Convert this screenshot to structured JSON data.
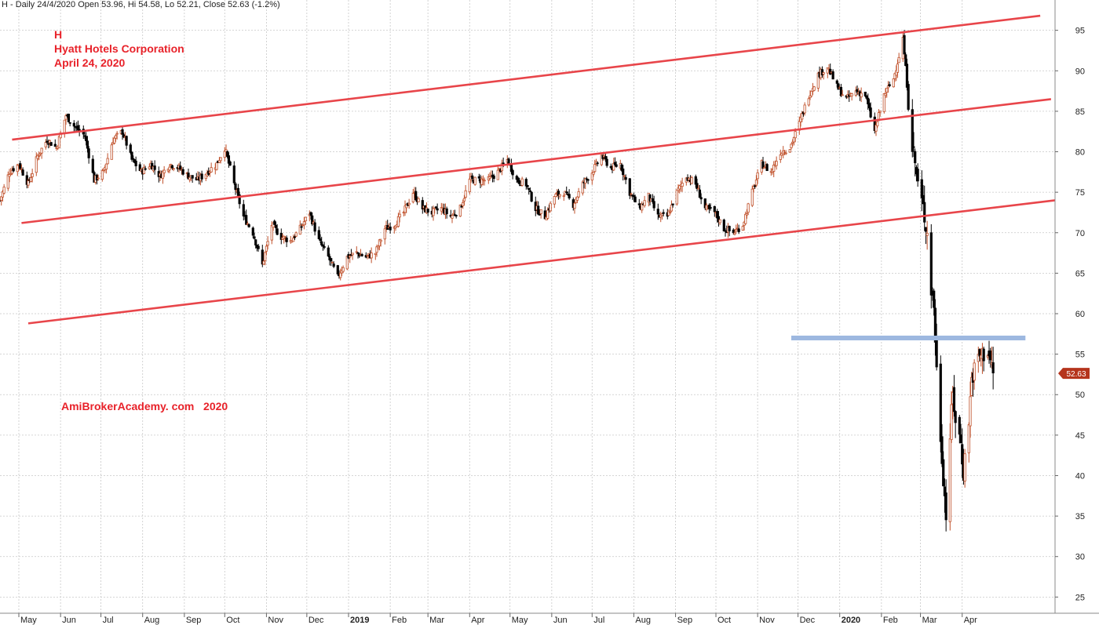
{
  "header": {
    "info": "H - Daily 24/4/2020 Open 53.96, Hi 54.58, Lo 52.21, Close 52.63 (-1.2%)"
  },
  "annotations": {
    "ticker": "H",
    "company": "Hyatt Hotels Corporation",
    "date": "April 24, 2020",
    "watermark": "AmiBrokerAcademy. com   2020"
  },
  "chart_data": {
    "type": "candlestick",
    "title": "H - Daily 24/4/2020 Open 53.96, Hi 54.58, Lo 52.21, Close 52.63 (-1.2%)",
    "ylim": [
      23,
      97
    ],
    "y_ticks": [
      25,
      30,
      35,
      40,
      45,
      50,
      55,
      60,
      65,
      70,
      75,
      80,
      85,
      90,
      95
    ],
    "x_ticks": [
      "May",
      "Jun",
      "Jul",
      "Aug",
      "Sep",
      "Oct",
      "Nov",
      "Dec",
      "2019",
      "Feb",
      "Mar",
      "Apr",
      "May",
      "Jun",
      "Jul",
      "Aug",
      "Sep",
      "Oct",
      "Nov",
      "Dec",
      "2020",
      "Feb",
      "Mar",
      "Apr"
    ],
    "x_range": [
      "2018-04-17",
      "2020-06-09"
    ],
    "last_close": 52.63,
    "last_close_label": "52.63",
    "grid": true,
    "colors": {
      "up": "#c0502a",
      "down": "#000000",
      "trendline": "#e8454a",
      "resistance": "#9db8e0",
      "price_tag": "#b5341c"
    },
    "price_path": [
      [
        "2018-04-17",
        74.0
      ],
      [
        "2018-04-24",
        77.5
      ],
      [
        "2018-05-01",
        78.5
      ],
      [
        "2018-05-08",
        76.0
      ],
      [
        "2018-05-15",
        79.5
      ],
      [
        "2018-05-22",
        81.5
      ],
      [
        "2018-05-29",
        80.5
      ],
      [
        "2018-06-05",
        84.5
      ],
      [
        "2018-06-12",
        83.0
      ],
      [
        "2018-06-19",
        82.0
      ],
      [
        "2018-06-26",
        76.5
      ],
      [
        "2018-07-03",
        77.5
      ],
      [
        "2018-07-10",
        81.5
      ],
      [
        "2018-07-17",
        82.5
      ],
      [
        "2018-07-24",
        79.0
      ],
      [
        "2018-07-31",
        77.5
      ],
      [
        "2018-08-07",
        78.5
      ],
      [
        "2018-08-14",
        77.0
      ],
      [
        "2018-08-21",
        78.5
      ],
      [
        "2018-08-28",
        78.0
      ],
      [
        "2018-09-04",
        77.0
      ],
      [
        "2018-09-11",
        76.5
      ],
      [
        "2018-09-18",
        77.5
      ],
      [
        "2018-09-25",
        78.5
      ],
      [
        "2018-10-01",
        80.5
      ],
      [
        "2018-10-08",
        76.0
      ],
      [
        "2018-10-15",
        72.0
      ],
      [
        "2018-10-22",
        70.0
      ],
      [
        "2018-10-29",
        66.0
      ],
      [
        "2018-11-05",
        71.0
      ],
      [
        "2018-11-12",
        69.5
      ],
      [
        "2018-11-19",
        69.0
      ],
      [
        "2018-11-26",
        70.5
      ],
      [
        "2018-12-03",
        72.5
      ],
      [
        "2018-12-10",
        69.0
      ],
      [
        "2018-12-17",
        67.0
      ],
      [
        "2018-12-24",
        64.5
      ],
      [
        "2018-12-31",
        67.0
      ],
      [
        "2019-01-07",
        67.5
      ],
      [
        "2019-01-14",
        67.0
      ],
      [
        "2019-01-21",
        67.5
      ],
      [
        "2019-01-28",
        70.5
      ],
      [
        "2019-02-04",
        71.0
      ],
      [
        "2019-02-11",
        72.5
      ],
      [
        "2019-02-18",
        75.0
      ],
      [
        "2019-02-25",
        73.0
      ],
      [
        "2019-03-04",
        72.5
      ],
      [
        "2019-03-11",
        73.0
      ],
      [
        "2019-03-18",
        72.0
      ],
      [
        "2019-03-25",
        73.0
      ],
      [
        "2019-04-01",
        76.5
      ],
      [
        "2019-04-08",
        76.5
      ],
      [
        "2019-04-15",
        76.5
      ],
      [
        "2019-04-22",
        77.5
      ],
      [
        "2019-04-29",
        79.0
      ],
      [
        "2019-05-06",
        76.5
      ],
      [
        "2019-05-13",
        76.0
      ],
      [
        "2019-05-20",
        73.0
      ],
      [
        "2019-05-27",
        72.0
      ],
      [
        "2019-06-03",
        74.5
      ],
      [
        "2019-06-10",
        75.0
      ],
      [
        "2019-06-17",
        73.5
      ],
      [
        "2019-06-24",
        76.0
      ],
      [
        "2019-07-01",
        77.5
      ],
      [
        "2019-07-08",
        79.5
      ],
      [
        "2019-07-15",
        78.0
      ],
      [
        "2019-07-22",
        78.5
      ],
      [
        "2019-07-29",
        75.0
      ],
      [
        "2019-08-05",
        73.0
      ],
      [
        "2019-08-12",
        74.5
      ],
      [
        "2019-08-19",
        72.0
      ],
      [
        "2019-08-26",
        72.0
      ],
      [
        "2019-09-02",
        75.0
      ],
      [
        "2019-09-09",
        77.0
      ],
      [
        "2019-09-16",
        76.0
      ],
      [
        "2019-09-23",
        73.0
      ],
      [
        "2019-09-30",
        72.5
      ],
      [
        "2019-10-07",
        70.5
      ],
      [
        "2019-10-14",
        70.0
      ],
      [
        "2019-10-21",
        71.0
      ],
      [
        "2019-10-28",
        75.0
      ],
      [
        "2019-11-04",
        78.5
      ],
      [
        "2019-11-11",
        77.5
      ],
      [
        "2019-11-18",
        80.0
      ],
      [
        "2019-11-25",
        80.5
      ],
      [
        "2019-12-02",
        83.5
      ],
      [
        "2019-12-09",
        87.0
      ],
      [
        "2019-12-16",
        89.5
      ],
      [
        "2019-12-23",
        90.5
      ],
      [
        "2019-12-30",
        88.0
      ],
      [
        "2020-01-06",
        86.5
      ],
      [
        "2020-01-13",
        87.5
      ],
      [
        "2020-01-20",
        87.0
      ],
      [
        "2020-01-27",
        82.5
      ],
      [
        "2020-02-03",
        87.0
      ],
      [
        "2020-02-10",
        89.0
      ],
      [
        "2020-02-17",
        94.0
      ],
      [
        "2020-02-21",
        86.5
      ],
      [
        "2020-02-24",
        81.0
      ],
      [
        "2020-02-28",
        76.0
      ],
      [
        "2020-03-03",
        73.0
      ],
      [
        "2020-03-06",
        70.0
      ],
      [
        "2020-03-09",
        63.0
      ],
      [
        "2020-03-11",
        61.0
      ],
      [
        "2020-03-13",
        53.0
      ],
      [
        "2020-03-16",
        45.0
      ],
      [
        "2020-03-18",
        40.0
      ],
      [
        "2020-03-20",
        35.0
      ],
      [
        "2020-03-23",
        45.0
      ],
      [
        "2020-03-25",
        50.0
      ],
      [
        "2020-03-27",
        47.0
      ],
      [
        "2020-03-31",
        44.0
      ],
      [
        "2020-04-02",
        40.5
      ],
      [
        "2020-04-06",
        47.0
      ],
      [
        "2020-04-08",
        52.0
      ],
      [
        "2020-04-13",
        54.5
      ],
      [
        "2020-04-16",
        55.0
      ],
      [
        "2020-04-20",
        55.5
      ],
      [
        "2020-04-24",
        52.63
      ]
    ],
    "trendlines": [
      {
        "from": [
          "2018-04-26",
          81.5
        ],
        "to": [
          "2020-05-29",
          96.8
        ]
      },
      {
        "from": [
          "2018-05-03",
          71.2
        ],
        "to": [
          "2020-06-06",
          86.5
        ]
      },
      {
        "from": [
          "2018-05-08",
          58.8
        ],
        "to": [
          "2020-06-09",
          74.0
        ]
      }
    ],
    "resistance": {
      "from": "2019-11-26",
      "to": "2020-05-18",
      "value": 57.0
    }
  }
}
